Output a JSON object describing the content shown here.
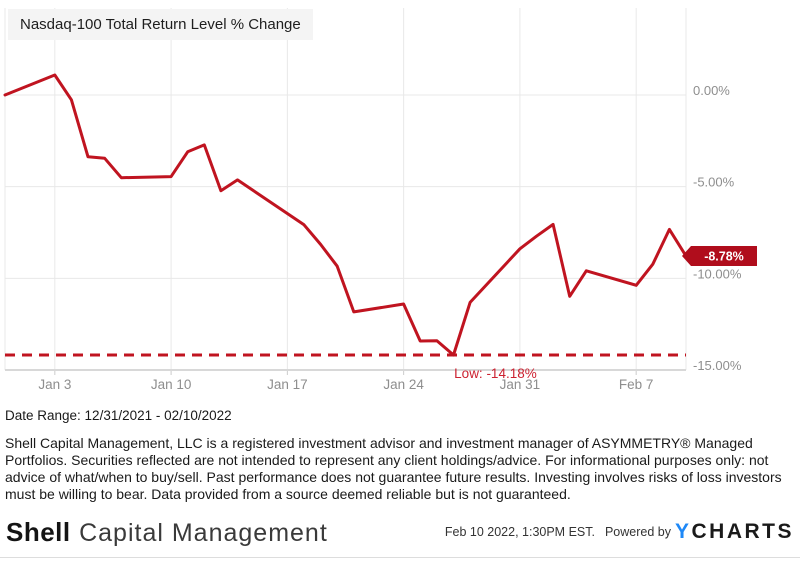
{
  "title": "Nasdaq-100 Total Return Level % Change",
  "colors": {
    "line": "#C01420",
    "badge_bg": "#B00D1C",
    "badge_text": "#FFFFFF",
    "low_label": "#CC2231",
    "grid": "#E8E8E8",
    "axis": "#D8D8D8",
    "tick": "#CCCCCC",
    "tick_label": "#8E8E8E",
    "ycharts_blue": "#1E88F7"
  },
  "chart_data": {
    "type": "line",
    "title": "Nasdaq-100 Total Return Level % Change",
    "xlabel": "",
    "ylabel": "",
    "x_start": "2021-12-31",
    "x_end": "2022-02-10",
    "ylim": [
      -15,
      0
    ],
    "grid": true,
    "x": [
      "2021-12-31",
      "2022-01-03",
      "2022-01-04",
      "2022-01-05",
      "2022-01-06",
      "2022-01-07",
      "2022-01-10",
      "2022-01-11",
      "2022-01-12",
      "2022-01-13",
      "2022-01-14",
      "2022-01-18",
      "2022-01-19",
      "2022-01-20",
      "2022-01-21",
      "2022-01-24",
      "2022-01-25",
      "2022-01-26",
      "2022-01-27",
      "2022-01-28",
      "2022-01-31",
      "2022-02-01",
      "2022-02-02",
      "2022-02-03",
      "2022-02-04",
      "2022-02-07",
      "2022-02-08",
      "2022-02-09",
      "2022-02-10"
    ],
    "values": [
      0.0,
      1.09,
      -0.26,
      -3.37,
      -3.45,
      -4.51,
      -4.45,
      -3.1,
      -2.72,
      -5.22,
      -4.63,
      -7.08,
      -8.15,
      -9.34,
      -11.83,
      -11.4,
      -13.42,
      -13.4,
      -14.18,
      -11.31,
      -8.39,
      -7.7,
      -7.06,
      -10.98,
      -9.59,
      -10.38,
      -9.23,
      -7.33,
      -8.78
    ],
    "x_ticks": [
      {
        "label": "Jan 3",
        "date": "2022-01-03"
      },
      {
        "label": "Jan 10",
        "date": "2022-01-10"
      },
      {
        "label": "Jan 17",
        "date": "2022-01-17"
      },
      {
        "label": "Jan 24",
        "date": "2022-01-24"
      },
      {
        "label": "Jan 31",
        "date": "2022-01-31"
      },
      {
        "label": "Feb 7",
        "date": "2022-02-07"
      }
    ],
    "y_ticks": [
      {
        "label": "0.00%",
        "value": 0
      },
      {
        "label": "-5.00%",
        "value": -5
      },
      {
        "label": "-10.00%",
        "value": -10
      },
      {
        "label": "-15.00%",
        "value": -15
      }
    ],
    "low_annotation": {
      "label": "Low: -14.18%",
      "value": -14.18,
      "date": "2022-01-27"
    },
    "end_value_label": "-8.78%",
    "legend_position": "none"
  },
  "date_range": "Date Range: 12/31/2021 - 02/10/2022",
  "disclaimer": "Shell Capital Management, LLC is a registered investment advisor and investment manager of ASYMMETRY® Managed Portfolios. Securities reflected are not intended to represent any client holdings/advice. For informational purposes only: not advice of what/when to buy/sell. Past performance does not guarantee future results. Investing involves risks of loss investors must be willing to bear. Data provided from a source deemed reliable but is not guaranteed.",
  "footer": {
    "logo_bold": "Shell",
    "logo_rest": "Capital Management",
    "timestamp": "Feb 10 2022, 1:30PM EST.",
    "powered_by": "Powered by",
    "ycharts_y": "Y",
    "ycharts_rest": "CHARTS"
  }
}
